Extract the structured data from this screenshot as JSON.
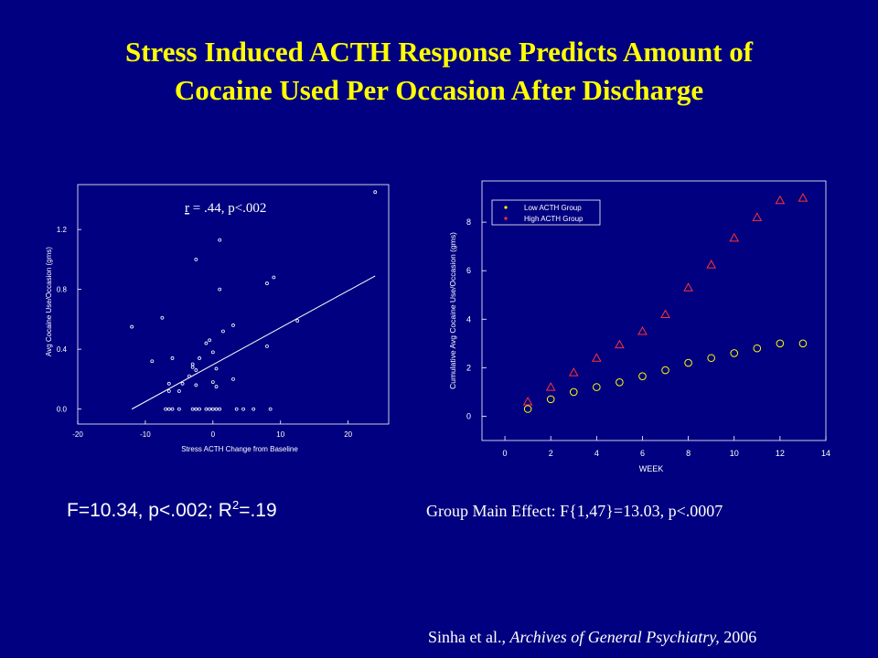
{
  "slide": {
    "title_line1": "Stress Induced ACTH Response Predicts Amount of",
    "title_line2": "Cocaine Used Per Occasion After Discharge",
    "left_stat": {
      "prefix": "F=10.34, p<.002;  R",
      "sup": "2",
      "suffix": "=.19"
    },
    "right_stat": "Group Main Effect: F{1,47}=13.03, p<.0007",
    "citation": {
      "authors": "Sinha et al., ",
      "journal": "Archives of General Psychiatry,",
      "year": " 2006"
    }
  },
  "colors": {
    "background": "#000080",
    "title": "#ffff00",
    "text": "#ffffff",
    "high_acth": "#ff3333",
    "low_acth": "#ffff00"
  },
  "chart_data": [
    {
      "type": "scatter",
      "title": "",
      "annotation": {
        "r_letter": "r",
        "rest": " = .44, p<.002"
      },
      "xlabel": "Stress ACTH Change from Baseline",
      "ylabel": "Avg Cocaine Use/Occasion (gms)",
      "xlim": [
        -20,
        26
      ],
      "ylim": [
        -0.1,
        1.5
      ],
      "xticks": [
        -20,
        -10,
        0,
        10,
        20
      ],
      "xtick_labels": [
        "-20",
        "-10",
        "0",
        "10",
        "20"
      ],
      "yticks": [
        0.0,
        0.4,
        0.8,
        1.2
      ],
      "ytick_labels": [
        "0.0",
        "0.4",
        "0.8",
        "1.2"
      ],
      "points": [
        [
          -12,
          0.55
        ],
        [
          -7.5,
          0.61
        ],
        [
          -9,
          0.32
        ],
        [
          -6,
          0.34
        ],
        [
          -6.5,
          0.17
        ],
        [
          -6.5,
          0.12
        ],
        [
          -5,
          0.12
        ],
        [
          -4.5,
          0.17
        ],
        [
          -3.5,
          0.22
        ],
        [
          -3,
          0.28
        ],
        [
          -3,
          0.3
        ],
        [
          -2.5,
          0.26
        ],
        [
          -2.5,
          0.16
        ],
        [
          -2,
          0.34
        ],
        [
          -1,
          0.44
        ],
        [
          -0.5,
          0.46
        ],
        [
          0,
          0.38
        ],
        [
          0,
          0.18
        ],
        [
          0.5,
          0.27
        ],
        [
          0.5,
          0.15
        ],
        [
          -2.5,
          1.0
        ],
        [
          1,
          1.13
        ],
        [
          1,
          0.8
        ],
        [
          1.5,
          0.52
        ],
        [
          3,
          0.56
        ],
        [
          3,
          0.2
        ],
        [
          8,
          0.84
        ],
        [
          9,
          0.88
        ],
        [
          8,
          0.42
        ],
        [
          12.5,
          0.59
        ],
        [
          24,
          1.45
        ],
        [
          -7,
          0
        ],
        [
          -6.5,
          0
        ],
        [
          -6,
          0
        ],
        [
          -5,
          0
        ],
        [
          -3,
          0
        ],
        [
          -2.5,
          0
        ],
        [
          -2,
          0
        ],
        [
          -1,
          0
        ],
        [
          -0.5,
          0
        ],
        [
          0,
          0
        ],
        [
          0.5,
          0
        ],
        [
          1,
          0
        ],
        [
          3.5,
          0
        ],
        [
          4.5,
          0
        ],
        [
          6,
          0
        ],
        [
          8.5,
          0
        ]
      ],
      "regression_line": [
        [
          -12,
          0.0
        ],
        [
          24,
          0.89
        ]
      ],
      "grid": false
    },
    {
      "type": "scatter",
      "title": "",
      "xlabel": "WEEK",
      "ylabel": "Cumulative Avg Cocaine Use/Occasion (gms)",
      "xlim": [
        -1,
        14
      ],
      "ylim": [
        -1,
        9.7
      ],
      "xticks": [
        0,
        2,
        4,
        6,
        8,
        10,
        12,
        14
      ],
      "xtick_labels": [
        "0",
        "2",
        "4",
        "6",
        "8",
        "10",
        "12",
        "14"
      ],
      "yticks": [
        0,
        2,
        4,
        6,
        8
      ],
      "ytick_labels": [
        "0",
        "2",
        "4",
        "6",
        "8"
      ],
      "legend": {
        "position": "top-left",
        "entries": [
          "Low ACTH Group",
          "High ACTH Group"
        ]
      },
      "x": [
        1,
        2,
        3,
        4,
        5,
        6,
        7,
        8,
        9,
        10,
        11,
        12,
        13
      ],
      "series": [
        {
          "name": "Low ACTH Group",
          "marker": "circle",
          "values": [
            0.3,
            0.7,
            1.0,
            1.2,
            1.4,
            1.65,
            1.9,
            2.2,
            2.4,
            2.6,
            2.8,
            3.0,
            3.0
          ]
        },
        {
          "name": "High ACTH Group",
          "marker": "triangle",
          "values": [
            0.6,
            1.2,
            1.8,
            2.4,
            2.95,
            3.5,
            4.2,
            5.3,
            6.25,
            7.35,
            8.2,
            8.9,
            9.0
          ]
        }
      ],
      "grid": false
    }
  ]
}
